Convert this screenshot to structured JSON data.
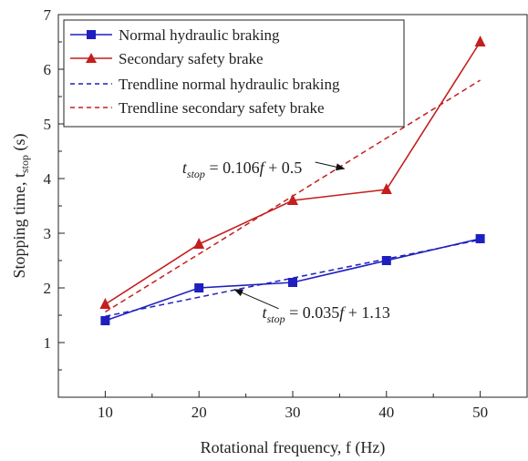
{
  "chart_data": {
    "type": "line",
    "xlabel": "Rotational frequency, f (Hz)",
    "ylabel": {
      "main": "Stopping time, t",
      "sub": "stop",
      "unit": " (s)"
    },
    "xlim": [
      5,
      55
    ],
    "ylim": [
      0,
      7
    ],
    "x_ticks": [
      10,
      20,
      30,
      40,
      50
    ],
    "y_ticks": [
      1,
      2,
      3,
      4,
      5,
      6,
      7
    ],
    "grid": false,
    "legend_position": "top-left",
    "series": [
      {
        "name": "Normal hydraulic braking",
        "color": "#1f1fbf",
        "marker": "square",
        "line": "solid",
        "x": [
          10,
          20,
          30,
          40,
          50
        ],
        "y": [
          1.4,
          2.0,
          2.1,
          2.5,
          2.9
        ]
      },
      {
        "name": "Secondary safety brake",
        "color": "#c41e1e",
        "marker": "triangle",
        "line": "solid",
        "x": [
          10,
          20,
          30,
          40,
          50
        ],
        "y": [
          1.7,
          2.8,
          3.6,
          3.8,
          6.5
        ]
      },
      {
        "name": "Trendline normal hydraulic braking",
        "color": "#1f1fbf",
        "marker": "none",
        "line": "dashed",
        "slope": 0.035,
        "intercept": 1.13,
        "x_range": [
          10,
          50
        ]
      },
      {
        "name": "Trendline secondary safety brake",
        "color": "#c41e1e",
        "marker": "none",
        "line": "dashed",
        "slope": 0.106,
        "intercept": 0.5,
        "x_range": [
          10,
          50
        ]
      }
    ],
    "annotations": [
      {
        "id": "eq-secondary",
        "lhs": "t",
        "lhs_sub": "stop",
        "rhs": " = 0.106",
        "var": "f",
        "tail": " + 0.5",
        "text_anchor": [
          31,
          4.2
        ],
        "arrow_from": [
          32.4,
          4.3
        ],
        "arrow_to": [
          35.5,
          4.18
        ]
      },
      {
        "id": "eq-normal",
        "lhs": "t",
        "lhs_sub": "stop",
        "rhs": " = 0.035",
        "var": "f",
        "tail": " + 1.13",
        "text_anchor": [
          40.4,
          1.55
        ],
        "arrow_from": [
          28.5,
          1.62
        ],
        "arrow_to": [
          23.8,
          1.97
        ]
      }
    ]
  }
}
